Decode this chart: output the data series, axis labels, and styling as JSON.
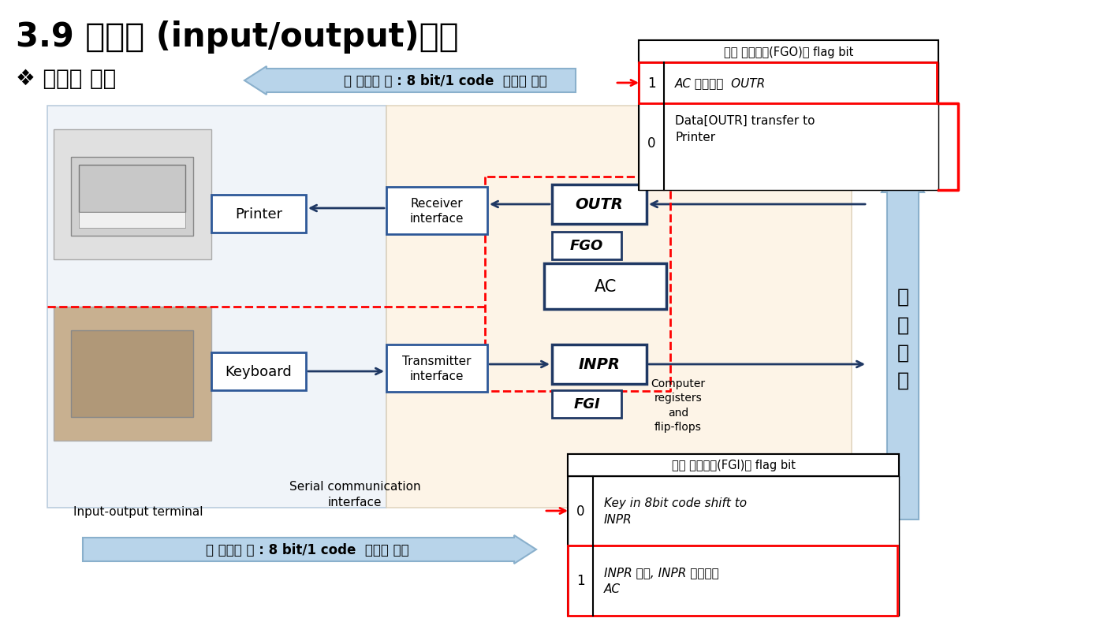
{
  "title": "3.9 입출력 (input/output)구성",
  "subtitle": "❖ 입출력 구성",
  "bg_color": "#ffffff",
  "top_arrow_text": "각 정보의 양 : 8 bit/1 code  직렬로 연결",
  "bottom_arrow_text": "각 정보의 양 : 8 bit/1 code  직렬로 연결",
  "printer_label": "Printer",
  "keyboard_label": "Keyboard",
  "terminal_label": "Input-output terminal",
  "receiver_label": "Receiver\ninterface",
  "transmitter_label": "Transmitter\ninterface",
  "serial_label": "Serial communication\ninterface",
  "computer_label": "Computer\nregisters\nand\nflip-flops",
  "outr_label": "OUTR",
  "inpr_label": "INPR",
  "ac_label": "AC",
  "fgo_label": "FGO",
  "fgi_label": "FGI",
  "parallel_label": "병\n렬\n연\n결",
  "fgo_table_title": "제어 플립플롬(FGO)의 flag bit",
  "fgo_row1_key": "1",
  "fgo_row1_val": "AC 병렬전송  OUTR",
  "fgo_row2_key": "0",
  "fgo_row2_val": "Data[OUTR] transfer to\nPrinter",
  "fgi_table_title": "제어 플립플롬(FGI)의 flag bit",
  "fgi_row1_key": "0",
  "fgi_row1_val": "Key in 8bit code shift to\nINPR",
  "fgi_row2_key": "1",
  "fgi_row2_val": "INPR 불변, INPR 병렬전송\nAC"
}
